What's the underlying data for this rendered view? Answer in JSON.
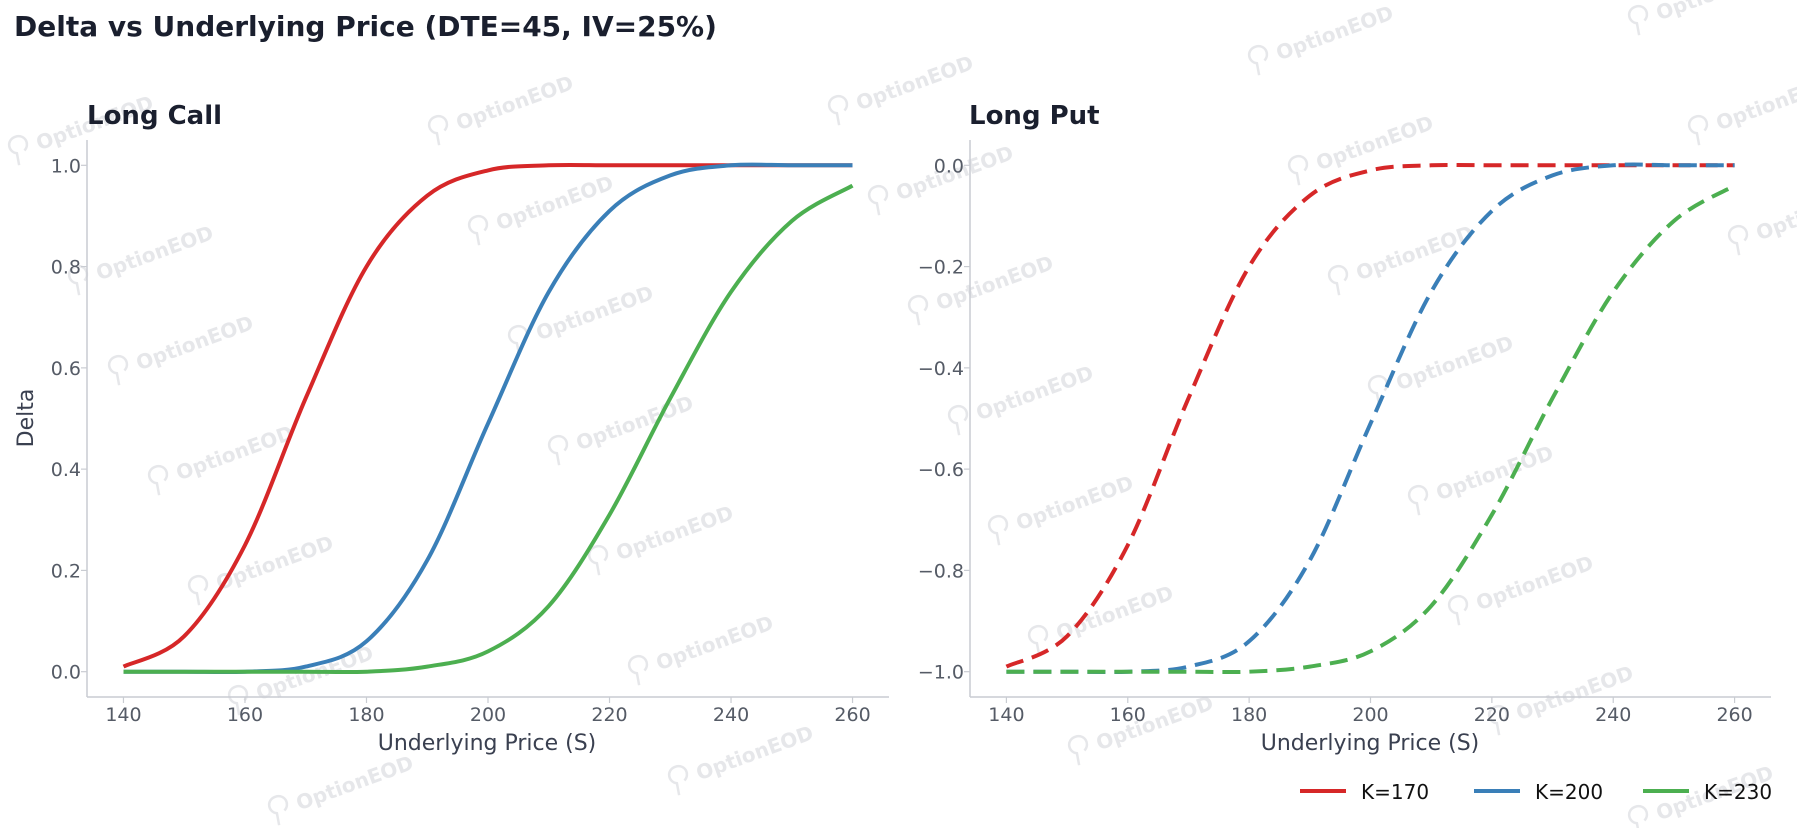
{
  "figure": {
    "title": "Delta vs Underlying Price (DTE=45, IV=25%)",
    "watermark": "OptionEOD"
  },
  "chart_data": [
    {
      "type": "line",
      "title": "Long Call",
      "xlabel": "Underlying Price (S)",
      "ylabel": "Delta",
      "xlim": [
        134,
        266
      ],
      "ylim": [
        -0.05,
        1.05
      ],
      "xticks": [
        140,
        160,
        180,
        200,
        220,
        240,
        260
      ],
      "yticks": [
        0.0,
        0.2,
        0.4,
        0.6,
        0.8,
        1.0
      ],
      "ytick_labels": [
        "0.0",
        "0.2",
        "0.4",
        "0.6",
        "0.8",
        "1.0"
      ],
      "grid": false,
      "x": [
        140,
        150,
        160,
        170,
        180,
        190,
        200,
        210,
        220,
        230,
        240,
        250,
        260
      ],
      "series": [
        {
          "name": "K=170",
          "color": "#d62728",
          "dash": "solid",
          "values": [
            0.01,
            0.07,
            0.25,
            0.54,
            0.8,
            0.94,
            0.99,
            1.0,
            1.0,
            1.0,
            1.0,
            1.0,
            1.0
          ]
        },
        {
          "name": "K=200",
          "color": "#3a7fb8",
          "dash": "solid",
          "values": [
            0.0,
            0.0,
            0.0,
            0.01,
            0.06,
            0.22,
            0.49,
            0.75,
            0.91,
            0.98,
            1.0,
            1.0,
            1.0
          ]
        },
        {
          "name": "K=230",
          "color": "#4caf50",
          "dash": "solid",
          "values": [
            0.0,
            0.0,
            0.0,
            0.0,
            0.0,
            0.01,
            0.04,
            0.13,
            0.31,
            0.54,
            0.75,
            0.89,
            0.96
          ]
        }
      ]
    },
    {
      "type": "line",
      "title": "Long Put",
      "xlabel": "Underlying Price (S)",
      "ylabel": "",
      "xlim": [
        134,
        266
      ],
      "ylim": [
        -1.05,
        0.05
      ],
      "xticks": [
        140,
        160,
        180,
        200,
        220,
        240,
        260
      ],
      "yticks": [
        -1.0,
        -0.8,
        -0.6,
        -0.4,
        -0.2,
        0.0
      ],
      "ytick_labels": [
        "−1.0",
        "−0.8",
        "−0.6",
        "−0.4",
        "−0.2",
        "0.0"
      ],
      "grid": false,
      "x": [
        140,
        150,
        160,
        170,
        180,
        190,
        200,
        210,
        220,
        230,
        240,
        250,
        260
      ],
      "series": [
        {
          "name": "K=170",
          "color": "#d62728",
          "dash": "dashed",
          "values": [
            -0.99,
            -0.93,
            -0.75,
            -0.46,
            -0.2,
            -0.06,
            -0.01,
            0.0,
            0.0,
            0.0,
            0.0,
            0.0,
            0.0
          ]
        },
        {
          "name": "K=200",
          "color": "#3a7fb8",
          "dash": "dashed",
          "values": [
            -1.0,
            -1.0,
            -1.0,
            -0.99,
            -0.94,
            -0.78,
            -0.51,
            -0.25,
            -0.09,
            -0.02,
            0.0,
            0.0,
            0.0
          ]
        },
        {
          "name": "K=230",
          "color": "#4caf50",
          "dash": "dashed",
          "values": [
            -1.0,
            -1.0,
            -1.0,
            -1.0,
            -1.0,
            -0.99,
            -0.96,
            -0.87,
            -0.69,
            -0.46,
            -0.25,
            -0.11,
            -0.04
          ]
        }
      ]
    }
  ],
  "legend": {
    "placement": "bottom-right",
    "items": [
      {
        "label": "K=170",
        "color": "#d62728"
      },
      {
        "label": "K=200",
        "color": "#3a7fb8"
      },
      {
        "label": "K=230",
        "color": "#4caf50"
      }
    ]
  }
}
